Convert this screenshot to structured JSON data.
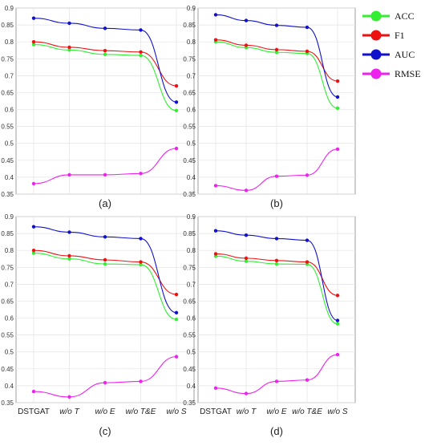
{
  "legend": [
    {
      "name": "ACC",
      "color": "#33ee33"
    },
    {
      "name": "F1",
      "color": "#ee1111"
    },
    {
      "name": "AUC",
      "color": "#1111cc"
    },
    {
      "name": "RMSE",
      "color": "#ee22ee"
    }
  ],
  "chart_data": [
    {
      "type": "line",
      "caption": "(a)",
      "categories": [
        "DSTGAT",
        "w/o T",
        "w/o E",
        "w/o T&E",
        "w/o S"
      ],
      "ylim": [
        0.35,
        0.9
      ],
      "yticks": [
        "0.35",
        "0.4",
        "0.45",
        "0.5",
        "0.55",
        "0.6",
        "0.65",
        "0.7",
        "0.75",
        "0.8",
        "0.85",
        "0.9"
      ],
      "grid": true,
      "show_xtick_labels": false,
      "series": [
        {
          "name": "ACC",
          "color": "#33ee33",
          "values": [
            0.792,
            0.776,
            0.763,
            0.76,
            0.597
          ]
        },
        {
          "name": "F1",
          "color": "#ee1111",
          "values": [
            0.8,
            0.784,
            0.774,
            0.77,
            0.67
          ]
        },
        {
          "name": "AUC",
          "color": "#1111cc",
          "values": [
            0.87,
            0.855,
            0.84,
            0.835,
            0.622
          ]
        },
        {
          "name": "RMSE",
          "color": "#ee22ee",
          "values": [
            0.381,
            0.407,
            0.407,
            0.411,
            0.485
          ]
        }
      ]
    },
    {
      "type": "line",
      "caption": "(b)",
      "categories": [
        "DSTGAT",
        "w/o T",
        "w/o E",
        "w/o T&E",
        "w/o S"
      ],
      "ylim": [
        0.35,
        0.9
      ],
      "yticks": [
        "0.35",
        "0.4",
        "0.45",
        "0.5",
        "0.55",
        "0.6",
        "0.65",
        "0.7",
        "0.75",
        "0.8",
        "0.85",
        "0.9"
      ],
      "grid": true,
      "show_xtick_labels": false,
      "series": [
        {
          "name": "ACC",
          "color": "#33ee33",
          "values": [
            0.8,
            0.783,
            0.769,
            0.766,
            0.604
          ]
        },
        {
          "name": "F1",
          "color": "#ee1111",
          "values": [
            0.806,
            0.79,
            0.777,
            0.772,
            0.684
          ]
        },
        {
          "name": "AUC",
          "color": "#1111cc",
          "values": [
            0.88,
            0.863,
            0.849,
            0.843,
            0.637
          ]
        },
        {
          "name": "RMSE",
          "color": "#ee22ee",
          "values": [
            0.375,
            0.361,
            0.403,
            0.406,
            0.483
          ]
        }
      ]
    },
    {
      "type": "line",
      "caption": "(c)",
      "categories": [
        "DSTGAT",
        "w/o T",
        "w/o E",
        "w/o T&E",
        "w/o S"
      ],
      "ylim": [
        0.35,
        0.9
      ],
      "yticks": [
        "0.35",
        "0.4",
        "0.45",
        "0.5",
        "0.55",
        "0.6",
        "0.65",
        "0.7",
        "0.75",
        "0.8",
        "0.85",
        "0.9"
      ],
      "grid": true,
      "show_xtick_labels": true,
      "series": [
        {
          "name": "ACC",
          "color": "#33ee33",
          "values": [
            0.792,
            0.775,
            0.76,
            0.758,
            0.596
          ]
        },
        {
          "name": "F1",
          "color": "#ee1111",
          "values": [
            0.8,
            0.784,
            0.772,
            0.766,
            0.67
          ]
        },
        {
          "name": "AUC",
          "color": "#1111cc",
          "values": [
            0.87,
            0.854,
            0.84,
            0.835,
            0.616
          ]
        },
        {
          "name": "RMSE",
          "color": "#ee22ee",
          "values": [
            0.383,
            0.367,
            0.409,
            0.413,
            0.486
          ]
        }
      ]
    },
    {
      "type": "line",
      "caption": "(d)",
      "categories": [
        "DSTGAT",
        "w/o T",
        "w/o E",
        "w/o T&E",
        "w/o S"
      ],
      "ylim": [
        0.35,
        0.9
      ],
      "yticks": [
        "0.35",
        "0.4",
        "0.45",
        "0.5",
        "0.55",
        "0.6",
        "0.65",
        "0.7",
        "0.75",
        "0.8",
        "0.85",
        "0.9"
      ],
      "grid": true,
      "show_xtick_labels": true,
      "series": [
        {
          "name": "ACC",
          "color": "#33ee33",
          "values": [
            0.783,
            0.768,
            0.76,
            0.759,
            0.583
          ]
        },
        {
          "name": "F1",
          "color": "#ee1111",
          "values": [
            0.79,
            0.777,
            0.77,
            0.766,
            0.667
          ]
        },
        {
          "name": "AUC",
          "color": "#1111cc",
          "values": [
            0.858,
            0.845,
            0.835,
            0.83,
            0.593
          ]
        },
        {
          "name": "RMSE",
          "color": "#ee22ee",
          "values": [
            0.393,
            0.377,
            0.413,
            0.417,
            0.492
          ]
        }
      ]
    }
  ]
}
